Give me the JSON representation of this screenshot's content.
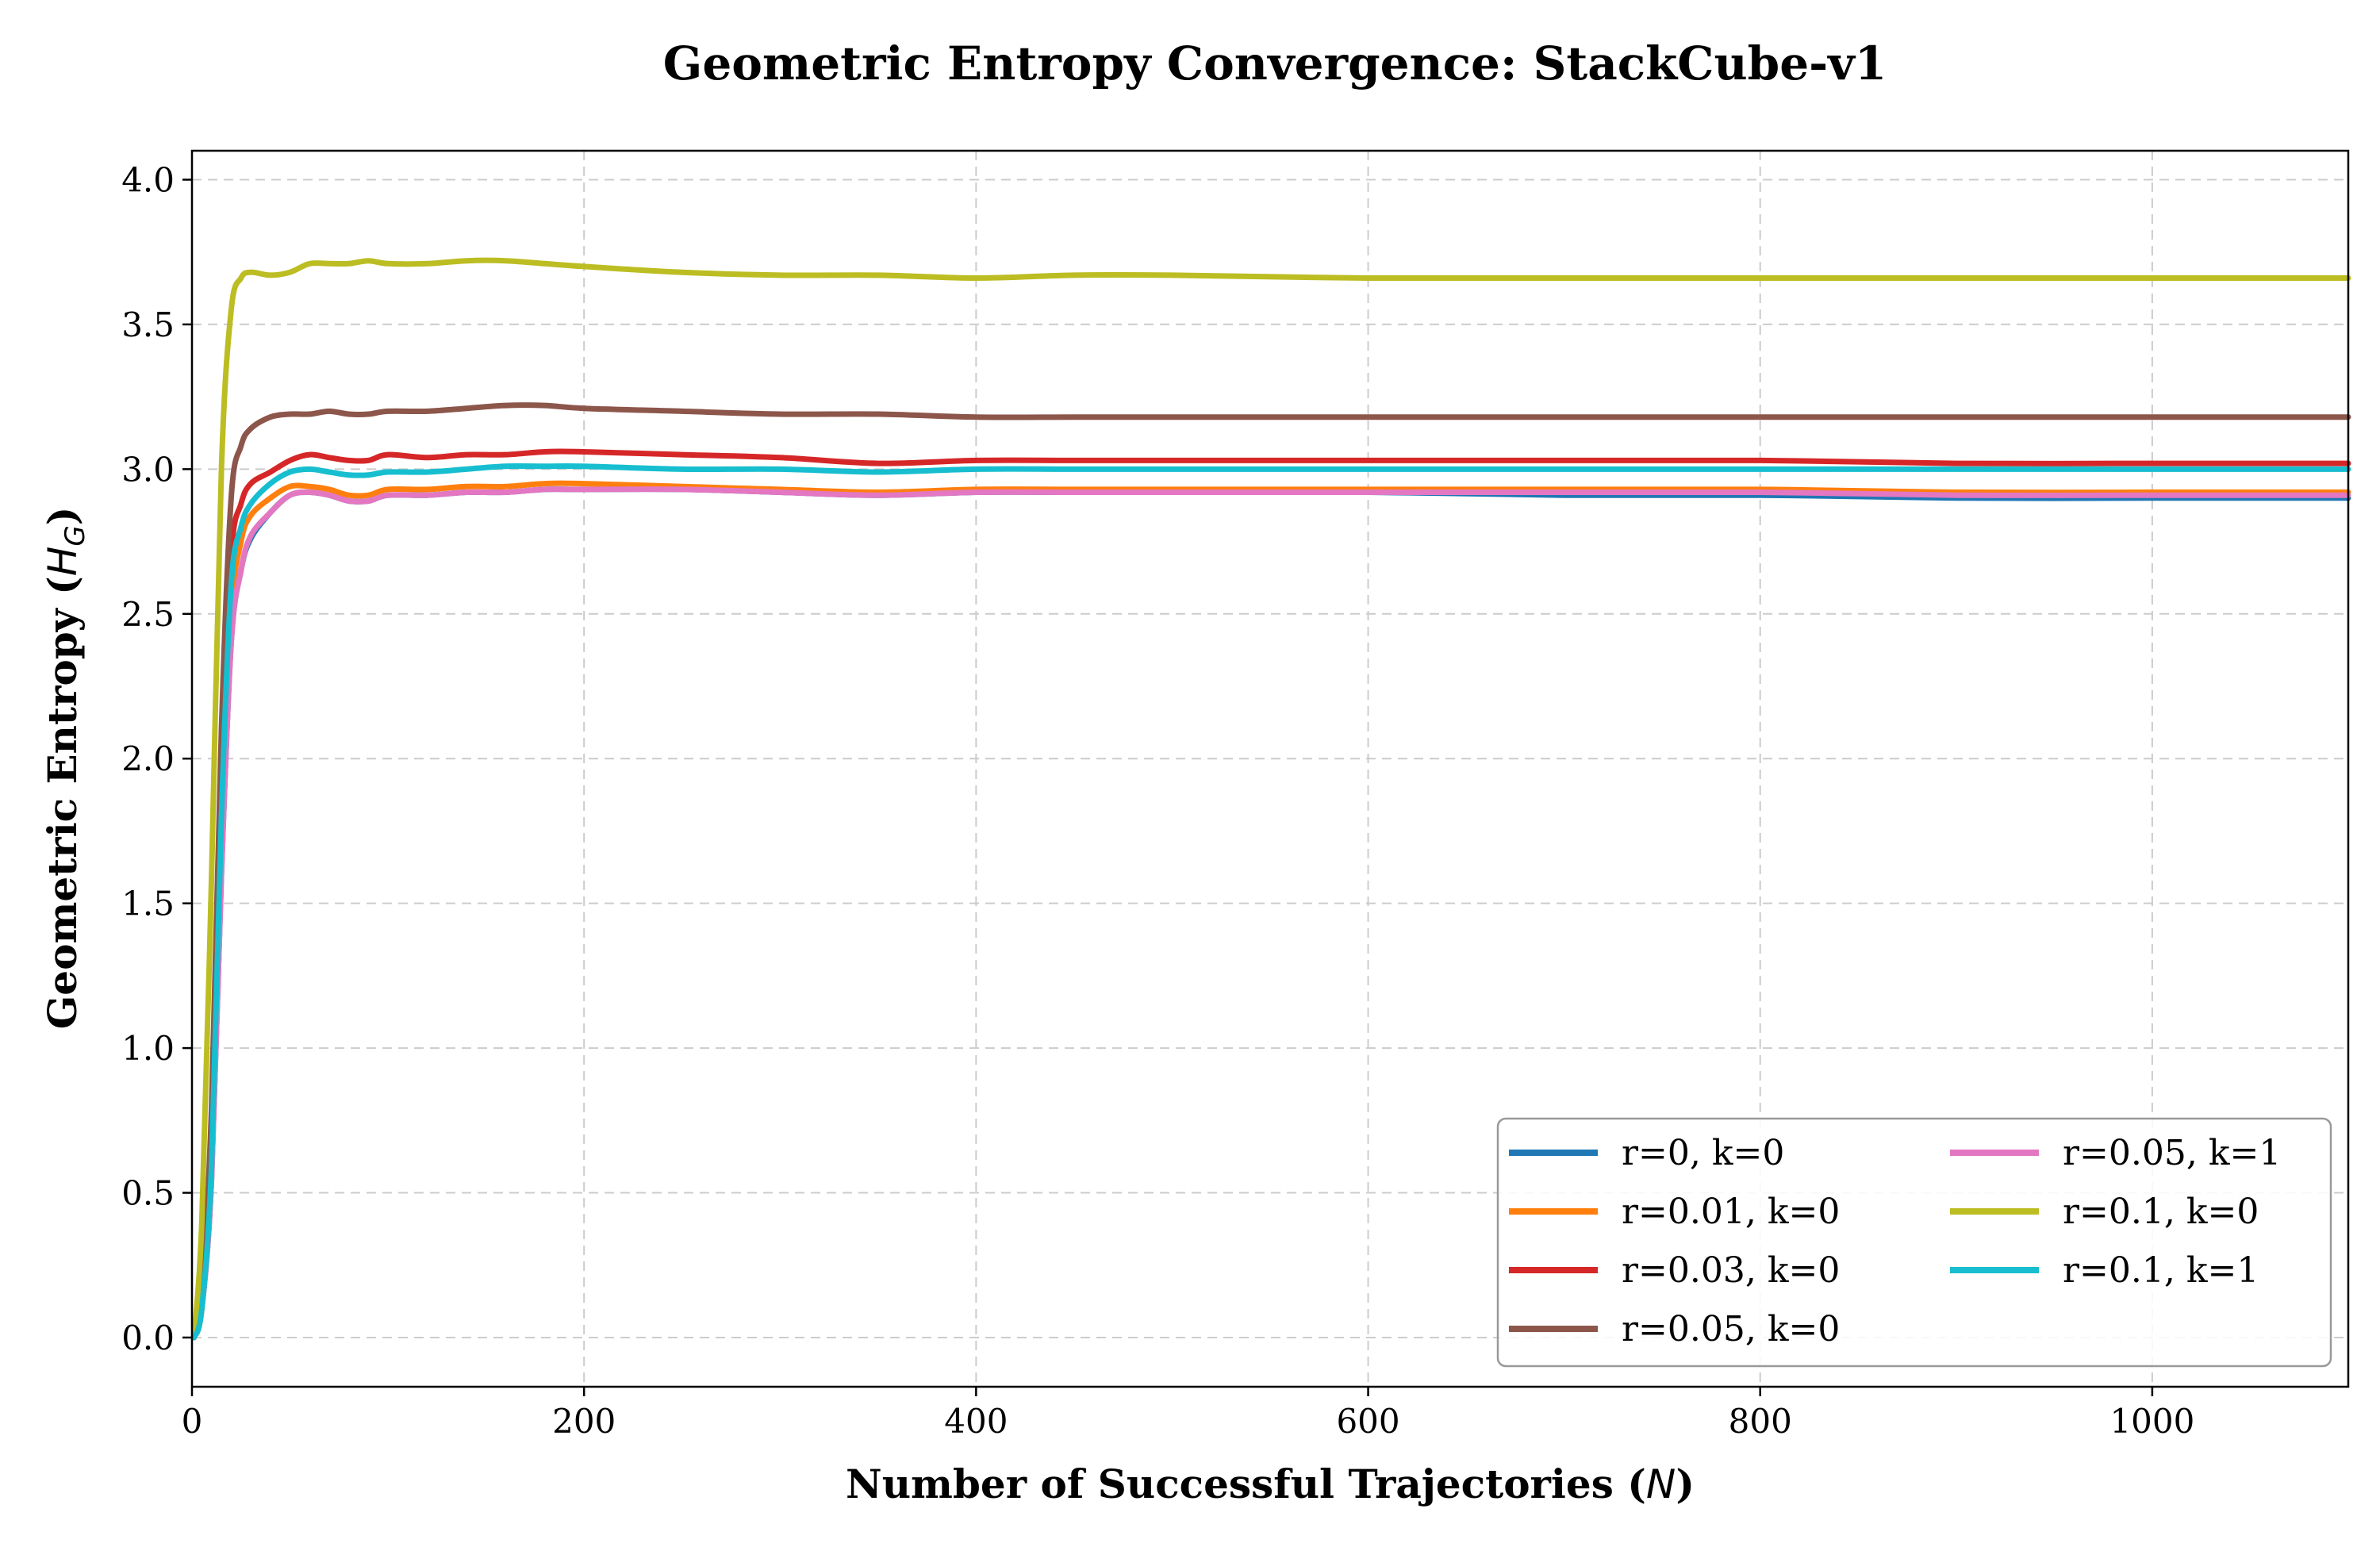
{
  "chart_data": {
    "type": "line",
    "title": "Geometric Entropy Convergence: StackCube-v1",
    "xlabel": "Number of Successful Trajectories (N)",
    "ylabel": "Geometric Entropy (H_G)",
    "xlim": [
      0,
      1100
    ],
    "ylim": [
      -0.17,
      4.1
    ],
    "x_ticks": [
      0,
      200,
      400,
      600,
      800,
      1000
    ],
    "y_ticks": [
      0.0,
      0.5,
      1.0,
      1.5,
      2.0,
      2.5,
      3.0,
      3.5,
      4.0
    ],
    "x_tick_labels": [
      "0",
      "200",
      "400",
      "600",
      "800",
      "1000"
    ],
    "y_tick_labels": [
      "0.0",
      "0.5",
      "1.0",
      "1.5",
      "2.0",
      "2.5",
      "3.0",
      "3.5",
      "4.0"
    ],
    "grid": true,
    "legend_position": "lower-right",
    "legend_columns": 2,
    "x": [
      1,
      5,
      10,
      15,
      20,
      25,
      30,
      40,
      50,
      60,
      70,
      80,
      90,
      100,
      120,
      140,
      160,
      180,
      200,
      250,
      300,
      350,
      400,
      450,
      500,
      600,
      700,
      800,
      900,
      1000,
      1100
    ],
    "series": [
      {
        "name": "r=0, k=0",
        "color": "#1f77b4",
        "values": [
          0.0,
          0.1,
          0.55,
          1.6,
          2.4,
          2.65,
          2.76,
          2.85,
          2.91,
          2.92,
          2.91,
          2.89,
          2.89,
          2.91,
          2.91,
          2.92,
          2.92,
          2.93,
          2.93,
          2.93,
          2.92,
          2.91,
          2.92,
          2.92,
          2.92,
          2.92,
          2.91,
          2.91,
          2.9,
          2.9,
          2.9
        ]
      },
      {
        "name": "r=0.01, k=0",
        "color": "#ff7f0e",
        "values": [
          0.0,
          0.1,
          0.6,
          1.7,
          2.5,
          2.75,
          2.84,
          2.9,
          2.94,
          2.94,
          2.93,
          2.91,
          2.91,
          2.93,
          2.93,
          2.94,
          2.94,
          2.95,
          2.95,
          2.94,
          2.93,
          2.92,
          2.93,
          2.93,
          2.93,
          2.93,
          2.93,
          2.93,
          2.92,
          2.92,
          2.92
        ]
      },
      {
        "name": "r=0.03, k=0",
        "color": "#d62728",
        "values": [
          0.0,
          0.12,
          0.7,
          1.9,
          2.7,
          2.88,
          2.95,
          2.99,
          3.03,
          3.05,
          3.04,
          3.03,
          3.03,
          3.05,
          3.04,
          3.05,
          3.05,
          3.06,
          3.06,
          3.05,
          3.04,
          3.02,
          3.03,
          3.03,
          3.03,
          3.03,
          3.03,
          3.03,
          3.02,
          3.02,
          3.02
        ]
      },
      {
        "name": "r=0.05, k=0",
        "color": "#8c564b",
        "values": [
          0.0,
          0.15,
          0.8,
          2.1,
          2.9,
          3.08,
          3.14,
          3.18,
          3.19,
          3.19,
          3.2,
          3.19,
          3.19,
          3.2,
          3.2,
          3.21,
          3.22,
          3.22,
          3.21,
          3.2,
          3.19,
          3.19,
          3.18,
          3.18,
          3.18,
          3.18,
          3.18,
          3.18,
          3.18,
          3.18,
          3.18
        ]
      },
      {
        "name": "r=0.05, k=1",
        "color": "#e377c2",
        "values": [
          0.0,
          0.1,
          0.55,
          1.6,
          2.4,
          2.65,
          2.77,
          2.85,
          2.91,
          2.92,
          2.91,
          2.89,
          2.89,
          2.91,
          2.91,
          2.92,
          2.92,
          2.93,
          2.93,
          2.93,
          2.92,
          2.91,
          2.92,
          2.92,
          2.92,
          2.92,
          2.92,
          2.92,
          2.91,
          2.91,
          2.91
        ]
      },
      {
        "name": "r=0.1, k=0",
        "color": "#bcbd22",
        "values": [
          0.0,
          0.4,
          1.6,
          3.0,
          3.55,
          3.66,
          3.68,
          3.67,
          3.68,
          3.71,
          3.71,
          3.71,
          3.72,
          3.71,
          3.71,
          3.72,
          3.72,
          3.71,
          3.7,
          3.68,
          3.67,
          3.67,
          3.66,
          3.67,
          3.67,
          3.66,
          3.66,
          3.66,
          3.66,
          3.66,
          3.66
        ]
      },
      {
        "name": "r=0.1, k=1",
        "color": "#17becf",
        "values": [
          0.0,
          0.1,
          0.6,
          1.8,
          2.6,
          2.8,
          2.88,
          2.95,
          2.99,
          3.0,
          2.99,
          2.98,
          2.98,
          2.99,
          2.99,
          3.0,
          3.01,
          3.01,
          3.01,
          3.0,
          3.0,
          2.99,
          3.0,
          3.0,
          3.0,
          3.0,
          3.0,
          3.0,
          3.0,
          3.0,
          3.0
        ]
      }
    ]
  }
}
